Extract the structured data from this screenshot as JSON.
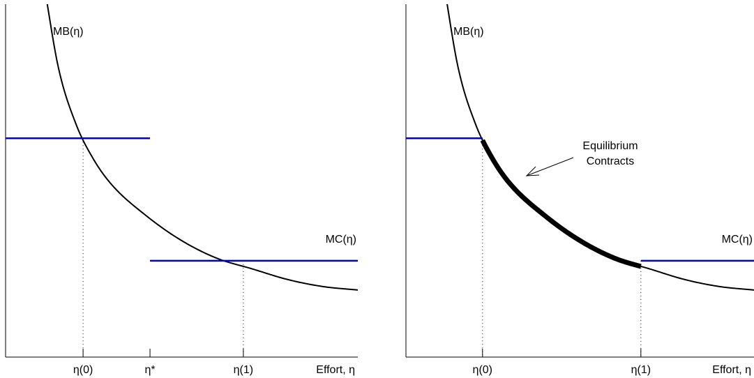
{
  "colors": {
    "curve": "#000000",
    "cost": "#0000c8",
    "axes": "#000000",
    "guide": "#000000"
  },
  "chart_data": [
    {
      "type": "line",
      "title": "",
      "xlabel": "Effort, η",
      "ylabel": "",
      "xlim": [
        0,
        1
      ],
      "ylim": [
        0,
        1
      ],
      "ticks": [
        {
          "x": 0.22,
          "label": "η(0)"
        },
        {
          "x": 0.41,
          "label": "η*"
        },
        {
          "x": 0.675,
          "label": "η(1)"
        }
      ],
      "mb": {
        "name": "MB(η)",
        "x": [
          0.11,
          0.15,
          0.2,
          0.25,
          0.3,
          0.4,
          0.5,
          0.6,
          0.7,
          0.8,
          0.9,
          1.0
        ],
        "y": [
          1.05,
          0.82,
          0.66,
          0.56,
          0.49,
          0.4,
          0.33,
          0.28,
          0.25,
          0.22,
          0.2,
          0.19
        ]
      },
      "mc_segments": [
        {
          "x": [
            0,
            0.41
          ],
          "y": 0.62
        },
        {
          "x": [
            0.41,
            1.0
          ],
          "y": 0.273
        }
      ],
      "mc_label": "MC(η)",
      "guides": [
        {
          "x": 0.22,
          "y": 0.62
        },
        {
          "x": 0.675,
          "y": 0.273
        }
      ],
      "annotations": []
    },
    {
      "type": "line",
      "title": "",
      "xlabel": "Effort, η",
      "ylabel": "",
      "xlim": [
        0,
        1
      ],
      "ylim": [
        0,
        1
      ],
      "ticks": [
        {
          "x": 0.22,
          "label": "η(0)"
        },
        {
          "x": 0.675,
          "label": "η(1)"
        }
      ],
      "mb": {
        "name": "MB(η)",
        "x": [
          0.11,
          0.15,
          0.2,
          0.25,
          0.3,
          0.4,
          0.5,
          0.6,
          0.7,
          0.8,
          0.9,
          1.0
        ],
        "y": [
          1.05,
          0.82,
          0.66,
          0.56,
          0.49,
          0.4,
          0.33,
          0.28,
          0.25,
          0.22,
          0.2,
          0.19
        ]
      },
      "mc_segments": [
        {
          "x": [
            0,
            0.22
          ],
          "y": 0.62
        },
        {
          "x": [
            0.675,
            1.0
          ],
          "y": 0.273
        }
      ],
      "mc_label": "MC(η)",
      "highlight": {
        "x": [
          0.22,
          0.675
        ],
        "name": "Equilibrium Contracts"
      },
      "guides": [
        {
          "x": 0.22,
          "y": 0.62
        },
        {
          "x": 0.675,
          "y": 0.273
        }
      ],
      "annotations": [
        {
          "lines": [
            "Equilibrium",
            "Contracts"
          ]
        }
      ]
    }
  ]
}
